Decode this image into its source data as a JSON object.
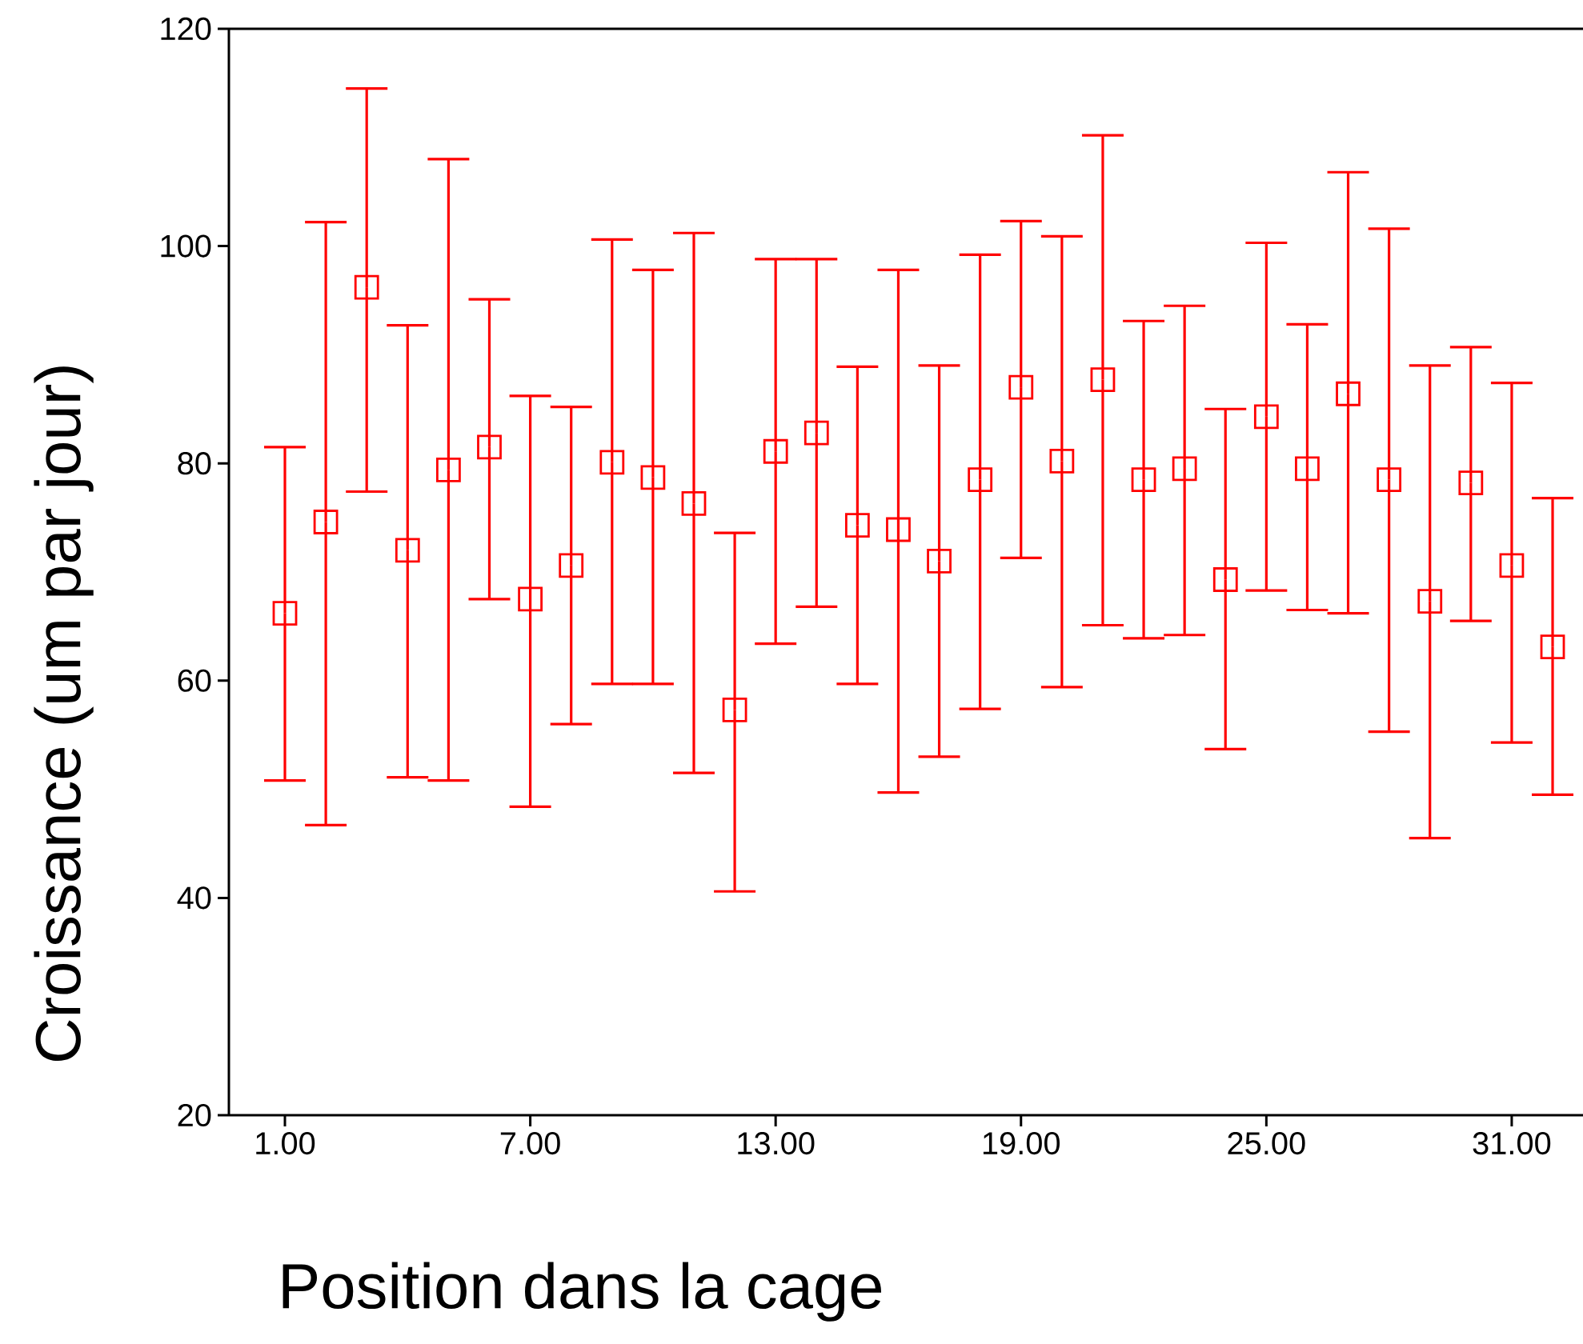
{
  "chart_data": {
    "type": "scatter",
    "xlabel": "Position dans la cage",
    "ylabel": "Croissance (um par jour)",
    "categories": [
      "1.00",
      null,
      null,
      null,
      null,
      null,
      "7.00",
      null,
      null,
      null,
      null,
      null,
      "13.00",
      null,
      null,
      null,
      null,
      null,
      "19.00",
      null,
      null,
      null,
      null,
      null,
      "25.00",
      null,
      null,
      null,
      null,
      null,
      "31.00",
      null
    ],
    "series": [
      {
        "color": "#ff0000",
        "values": [
          66.2,
          74.6,
          96.2,
          72.0,
          79.4,
          81.5,
          67.5,
          70.6,
          80.1,
          78.7,
          76.3,
          57.3,
          81.1,
          82.8,
          74.3,
          73.9,
          71.0,
          78.5,
          87.0,
          80.2,
          87.7,
          78.5,
          79.5,
          69.3,
          84.3,
          79.5,
          86.4,
          78.5,
          67.3,
          78.2,
          70.6,
          63.1
        ],
        "errors": [
          [
            50.8,
            81.5
          ],
          [
            46.7,
            102.2
          ],
          [
            77.4,
            114.5
          ],
          [
            51.1,
            92.7
          ],
          [
            50.8,
            108.0
          ],
          [
            67.5,
            95.1
          ],
          [
            48.4,
            86.2
          ],
          [
            56.0,
            85.2
          ],
          [
            59.7,
            100.6
          ],
          [
            59.7,
            97.8
          ],
          [
            51.5,
            101.2
          ],
          [
            40.6,
            73.6
          ],
          [
            63.4,
            98.8
          ],
          [
            66.8,
            98.8
          ],
          [
            59.7,
            88.9
          ],
          [
            49.7,
            97.8
          ],
          [
            53.0,
            89.0
          ],
          [
            57.4,
            99.2
          ],
          [
            71.3,
            102.3
          ],
          [
            59.4,
            100.9
          ],
          [
            65.1,
            110.2
          ],
          [
            63.9,
            93.1
          ],
          [
            64.2,
            94.5
          ],
          [
            53.7,
            85.0
          ],
          [
            68.3,
            100.3
          ],
          [
            66.5,
            92.8
          ],
          [
            66.2,
            106.8
          ],
          [
            55.3,
            101.6
          ],
          [
            45.5,
            89.0
          ],
          [
            65.5,
            90.7
          ],
          [
            54.3,
            87.4
          ],
          [
            49.5,
            76.8
          ]
        ]
      }
    ],
    "ylim": [
      20,
      120
    ],
    "yticks": [
      20,
      40,
      60,
      80,
      100,
      120
    ],
    "marker": "square",
    "grid": false,
    "legend": false
  }
}
